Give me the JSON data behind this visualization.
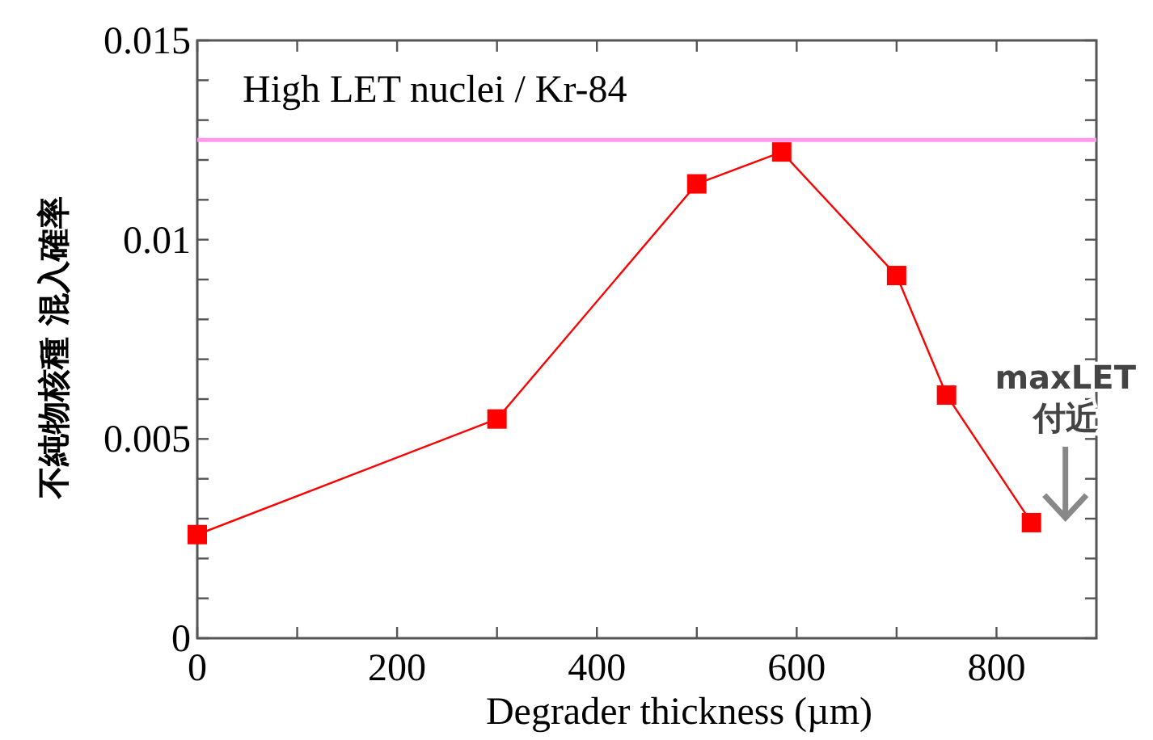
{
  "chart_data": {
    "type": "line",
    "title": "High LET nuclei / Kr-84",
    "xlabel": "Degrader thickness (µm)",
    "ylabel": "不純物核種 混入確率",
    "x": [
      0,
      300,
      500,
      585,
      700,
      750,
      835
    ],
    "series": [
      {
        "color": "#ff0000",
        "values": [
          0.0026,
          0.0055,
          0.0114,
          0.0122,
          0.0091,
          0.0061,
          0.0029
        ]
      }
    ],
    "marker": "square",
    "line_style": "solid",
    "grid": false,
    "xlim": [
      0,
      900
    ],
    "xticks": [
      0,
      {
        "value": 100,
        "label": null
      },
      200,
      {
        "value": 300,
        "label": null
      },
      400,
      {
        "value": 500,
        "label": null
      },
      600,
      {
        "value": 700,
        "label": null
      },
      800
    ],
    "ylim": [
      0,
      0.015
    ],
    "yticks": [
      0,
      {
        "value": 0.001,
        "label": null
      },
      {
        "value": 0.002,
        "label": null
      },
      {
        "value": 0.003,
        "label": null
      },
      {
        "value": 0.004,
        "label": null
      },
      0.005,
      {
        "value": 0.006,
        "label": null
      },
      {
        "value": 0.007,
        "label": null
      },
      {
        "value": 0.008,
        "label": null
      },
      {
        "value": 0.009,
        "label": null
      },
      0.01,
      {
        "value": 0.011,
        "label": null
      },
      {
        "value": 0.012,
        "label": null
      },
      {
        "value": 0.013,
        "label": null
      },
      {
        "value": 0.014,
        "label": null
      },
      0.015
    ],
    "ref_lines": [
      {
        "axis": "y",
        "value": 0.0125,
        "color": "#ff99ee"
      }
    ],
    "annotations": [
      "maxLET\n付近"
    ]
  }
}
